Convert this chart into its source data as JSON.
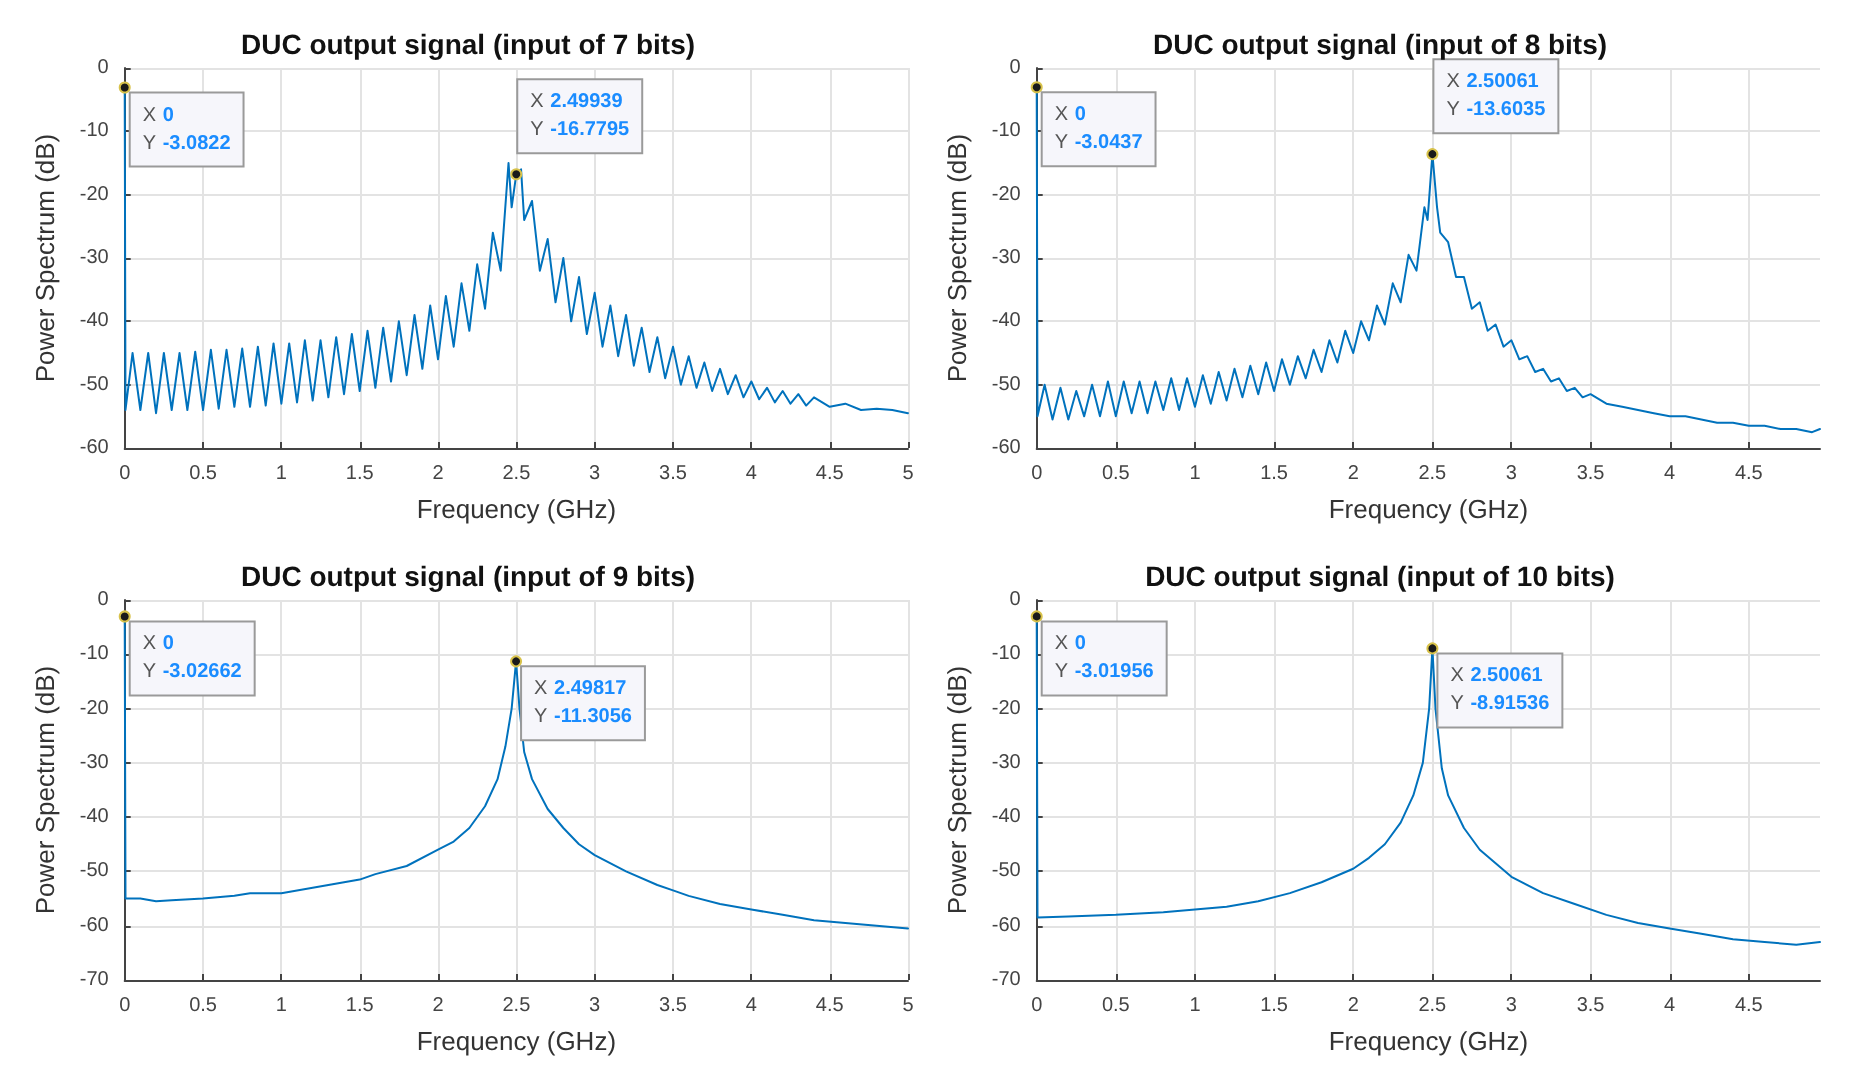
{
  "chart_data": [
    {
      "type": "line",
      "title": "DUC output signal (input of 7 bits)",
      "xlabel": "Frequency (GHz)",
      "ylabel": "Power Spectrum (dB)",
      "xlim": [
        0,
        5
      ],
      "ylim": [
        -60,
        0
      ],
      "xticks": [
        0,
        0.5,
        1,
        1.5,
        2,
        2.5,
        3,
        3.5,
        4,
        4.5,
        5
      ],
      "yticks": [
        0,
        -10,
        -20,
        -30,
        -40,
        -50,
        -60
      ],
      "grid": true,
      "marker": "none",
      "line_style": "solid",
      "series": [
        {
          "color": "#0072bd",
          "x": [
            0,
            0.005,
            0.05,
            0.1,
            0.15,
            0.2,
            0.25,
            0.3,
            0.35,
            0.4,
            0.45,
            0.5,
            0.55,
            0.6,
            0.65,
            0.7,
            0.75,
            0.8,
            0.85,
            0.9,
            0.95,
            1,
            1.05,
            1.1,
            1.15,
            1.2,
            1.25,
            1.3,
            1.35,
            1.4,
            1.45,
            1.5,
            1.55,
            1.6,
            1.65,
            1.7,
            1.75,
            1.8,
            1.85,
            1.9,
            1.95,
            2,
            2.05,
            2.1,
            2.15,
            2.2,
            2.25,
            2.3,
            2.35,
            2.4,
            2.45,
            2.47,
            2.49939,
            2.53,
            2.55,
            2.6,
            2.65,
            2.7,
            2.75,
            2.8,
            2.85,
            2.9,
            2.95,
            3,
            3.05,
            3.1,
            3.15,
            3.2,
            3.25,
            3.3,
            3.35,
            3.4,
            3.45,
            3.5,
            3.55,
            3.6,
            3.65,
            3.7,
            3.75,
            3.8,
            3.85,
            3.9,
            3.95,
            4,
            4.05,
            4.1,
            4.15,
            4.2,
            4.25,
            4.3,
            4.35,
            4.4,
            4.5,
            4.6,
            4.7,
            4.8,
            4.9,
            5
          ],
          "values": [
            -3.0822,
            -54,
            -45,
            -54,
            -45,
            -54.5,
            -45,
            -54,
            -45,
            -54,
            -44.8,
            -54,
            -44.5,
            -53.8,
            -44.5,
            -53.5,
            -44.3,
            -53.5,
            -44,
            -53.3,
            -43.5,
            -53,
            -43.5,
            -52.8,
            -43,
            -52.5,
            -43,
            -52,
            -42.5,
            -51.5,
            -42,
            -51,
            -41.5,
            -50.5,
            -41,
            -49.5,
            -40,
            -48.5,
            -39,
            -47.5,
            -37.5,
            -46,
            -36,
            -44,
            -34,
            -41.5,
            -31,
            -38,
            -26,
            -32,
            -15,
            -22,
            -16.7795,
            -16,
            -24,
            -21,
            -32,
            -27,
            -37,
            -30,
            -40,
            -33,
            -42,
            -35.5,
            -44,
            -37.5,
            -45.5,
            -39,
            -47,
            -41,
            -48,
            -42.5,
            -49,
            -44,
            -50,
            -45.5,
            -50.5,
            -46.5,
            -51,
            -47.5,
            -51.5,
            -48.5,
            -52,
            -49.5,
            -52.3,
            -50.5,
            -52.8,
            -51,
            -53,
            -51.5,
            -53.3,
            -52,
            -53.5,
            -53,
            -54,
            -53.8,
            -54,
            -54.5
          ]
        }
      ],
      "annotations": [
        {
          "text": "X 0\nY -3.0822",
          "x": 0,
          "y": -3.0822
        },
        {
          "text": "X 2.49939\nY -16.7795",
          "x": 2.49939,
          "y": -16.7795
        }
      ]
    },
    {
      "type": "line",
      "title": "DUC output signal (input of 8 bits)",
      "xlabel": "Frequency (GHz)",
      "ylabel": "Power Spectrum (dB)",
      "xlim": [
        0,
        4.95
      ],
      "ylim": [
        -60,
        0
      ],
      "xticks": [
        0,
        0.5,
        1,
        1.5,
        2,
        2.5,
        3,
        3.5,
        4,
        4.5
      ],
      "yticks": [
        0,
        -10,
        -20,
        -30,
        -40,
        -50,
        -60
      ],
      "grid": true,
      "marker": "none",
      "line_style": "solid",
      "series": [
        {
          "color": "#0072bd",
          "x": [
            0,
            0.005,
            0.05,
            0.1,
            0.15,
            0.2,
            0.25,
            0.3,
            0.35,
            0.4,
            0.45,
            0.5,
            0.55,
            0.6,
            0.65,
            0.7,
            0.75,
            0.8,
            0.85,
            0.9,
            0.95,
            1,
            1.05,
            1.1,
            1.15,
            1.2,
            1.25,
            1.3,
            1.35,
            1.4,
            1.45,
            1.5,
            1.55,
            1.6,
            1.65,
            1.7,
            1.75,
            1.8,
            1.85,
            1.9,
            1.95,
            2,
            2.05,
            2.1,
            2.15,
            2.2,
            2.25,
            2.3,
            2.35,
            2.4,
            2.45,
            2.47,
            2.50061,
            2.53,
            2.55,
            2.6,
            2.65,
            2.7,
            2.75,
            2.8,
            2.85,
            2.9,
            2.95,
            3,
            3.05,
            3.1,
            3.15,
            3.2,
            3.25,
            3.3,
            3.35,
            3.4,
            3.45,
            3.5,
            3.6,
            3.7,
            3.8,
            3.9,
            4,
            4.1,
            4.2,
            4.3,
            4.4,
            4.5,
            4.6,
            4.7,
            4.8,
            4.9,
            4.95
          ],
          "values": [
            -3.0437,
            -55,
            -50,
            -55.5,
            -50.5,
            -55.5,
            -51,
            -55,
            -50,
            -55,
            -49.5,
            -55,
            -49.5,
            -54.5,
            -49.5,
            -54.5,
            -49.5,
            -54,
            -49,
            -54,
            -49,
            -53.5,
            -48.5,
            -53,
            -48,
            -52.5,
            -47.5,
            -52,
            -47,
            -51.5,
            -46.5,
            -51,
            -46,
            -50,
            -45.5,
            -49,
            -44.5,
            -48,
            -43,
            -46.5,
            -41.5,
            -45,
            -40,
            -43,
            -37.5,
            -40.5,
            -34,
            -37,
            -29.5,
            -32,
            -22,
            -24,
            -13.6035,
            -22,
            -26,
            -27.5,
            -33,
            -33,
            -38,
            -37,
            -41.5,
            -40.5,
            -44,
            -43,
            -46,
            -45.5,
            -48,
            -47.5,
            -49.5,
            -49,
            -51,
            -50.5,
            -52,
            -51.5,
            -53,
            -53.5,
            -54,
            -54.5,
            -55,
            -55,
            -55.5,
            -56,
            -56,
            -56.5,
            -56.5,
            -57,
            -57,
            -57.5,
            -57
          ]
        }
      ],
      "annotations": [
        {
          "text": "X 0\nY -3.0437",
          "x": 0,
          "y": -3.0437
        },
        {
          "text": "X 2.50061\nY -13.6035",
          "x": 2.50061,
          "y": -13.6035
        }
      ]
    },
    {
      "type": "line",
      "title": "DUC output signal (input of 9 bits)",
      "xlabel": "Frequency (GHz)",
      "ylabel": "Power Spectrum (dB)",
      "xlim": [
        0,
        5
      ],
      "ylim": [
        -70,
        0
      ],
      "xticks": [
        0,
        0.5,
        1,
        1.5,
        2,
        2.5,
        3,
        3.5,
        4,
        4.5,
        5
      ],
      "yticks": [
        0,
        -10,
        -20,
        -30,
        -40,
        -50,
        -60,
        -70
      ],
      "grid": true,
      "marker": "none",
      "line_style": "solid",
      "series": [
        {
          "color": "#0072bd",
          "x": [
            0,
            0.005,
            0.1,
            0.2,
            0.3,
            0.5,
            0.7,
            0.8,
            1,
            1.2,
            1.4,
            1.5,
            1.6,
            1.8,
            2,
            2.1,
            2.2,
            2.3,
            2.38,
            2.43,
            2.47,
            2.49817,
            2.52,
            2.55,
            2.6,
            2.7,
            2.8,
            2.9,
            3,
            3.2,
            3.4,
            3.5,
            3.6,
            3.8,
            4,
            4.2,
            4.4,
            4.6,
            4.8,
            5
          ],
          "values": [
            -3.02662,
            -55,
            -55,
            -55.5,
            -55.3,
            -55,
            -54.5,
            -54,
            -54,
            -53,
            -52,
            -51.5,
            -50.5,
            -49,
            -46,
            -44.5,
            -42,
            -38,
            -33,
            -27,
            -20,
            -11.3056,
            -20,
            -28,
            -33,
            -38.5,
            -42,
            -45,
            -47,
            -50,
            -52.5,
            -53.5,
            -54.5,
            -56,
            -57,
            -58,
            -59,
            -59.5,
            -60,
            -60.5
          ]
        }
      ],
      "annotations": [
        {
          "text": "X 0\nY -3.02662",
          "x": 0,
          "y": -3.02662
        },
        {
          "text": "X 2.49817\nY -11.3056",
          "x": 2.49817,
          "y": -11.3056
        }
      ]
    },
    {
      "type": "line",
      "title": "DUC output signal (input of 10 bits)",
      "xlabel": "Frequency (GHz)",
      "ylabel": "Power Spectrum (dB)",
      "xlim": [
        0,
        4.95
      ],
      "ylim": [
        -70,
        0
      ],
      "xticks": [
        0,
        0.5,
        1,
        1.5,
        2,
        2.5,
        3,
        3.5,
        4,
        4.5
      ],
      "yticks": [
        0,
        -10,
        -20,
        -30,
        -40,
        -50,
        -60,
        -70
      ],
      "grid": true,
      "marker": "none",
      "line_style": "solid",
      "series": [
        {
          "color": "#0072bd",
          "x": [
            0,
            0.005,
            0.2,
            0.5,
            0.8,
            1,
            1.2,
            1.4,
            1.6,
            1.8,
            2,
            2.1,
            2.2,
            2.3,
            2.38,
            2.44,
            2.48,
            2.50061,
            2.52,
            2.56,
            2.6,
            2.7,
            2.8,
            2.9,
            3,
            3.2,
            3.4,
            3.6,
            3.8,
            4,
            4.2,
            4.4,
            4.6,
            4.8,
            4.95
          ],
          "values": [
            -3.01956,
            -58.5,
            -58.3,
            -58,
            -57.5,
            -57,
            -56.5,
            -55.5,
            -54,
            -52,
            -49.5,
            -47.5,
            -45,
            -41,
            -36,
            -30,
            -20,
            -8.91536,
            -20,
            -31,
            -36,
            -42,
            -46,
            -48.5,
            -51,
            -54,
            -56,
            -58,
            -59.5,
            -60.5,
            -61.5,
            -62.5,
            -63,
            -63.5,
            -63
          ]
        }
      ],
      "annotations": [
        {
          "text": "X 0\nY -3.01956",
          "x": 0,
          "y": -3.01956
        },
        {
          "text": "X 2.50061\nY -8.91536",
          "x": 2.50061,
          "y": -8.91536
        }
      ]
    }
  ]
}
